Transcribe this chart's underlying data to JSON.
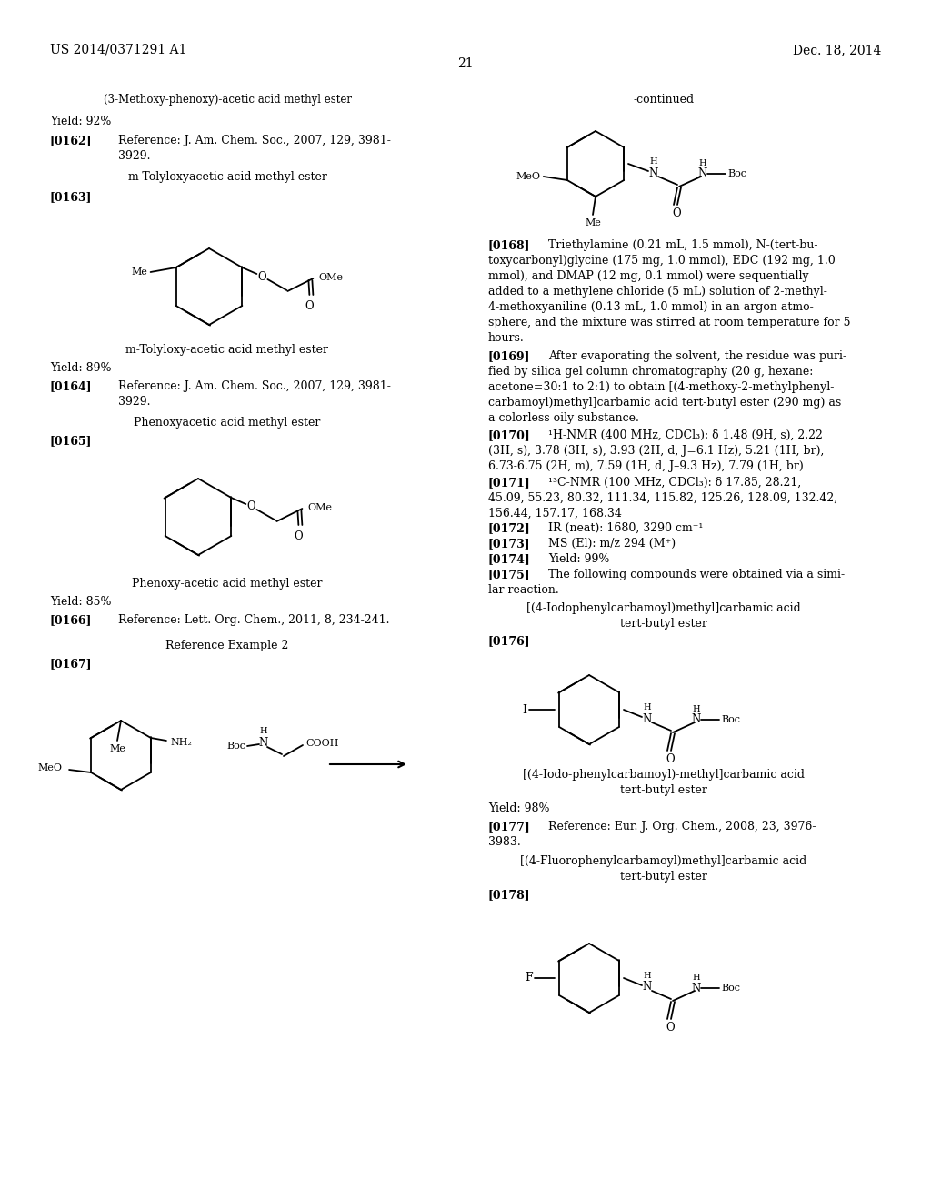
{
  "bg_color": "#ffffff",
  "header_left": "US 2014/0371291 A1",
  "header_right": "Dec. 18, 2014",
  "page_number": "21",
  "text_color": "#000000",
  "line_color": "#000000"
}
